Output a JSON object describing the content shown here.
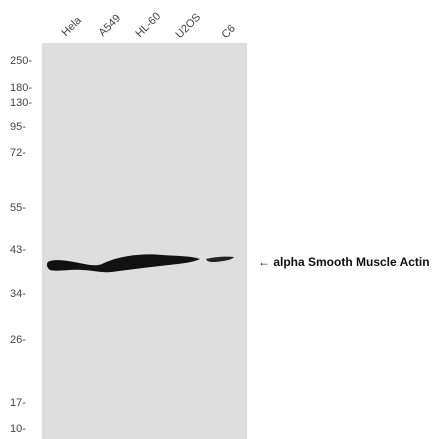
{
  "lanes": [
    "Hela",
    "A549",
    "HL-60",
    "U2OS",
    "C6"
  ],
  "mw_markers": [
    "250-",
    "180-",
    "130-",
    "95-",
    "72-",
    "55-",
    "43-",
    "34-",
    "26-",
    "17-",
    "10-"
  ],
  "band_label": "← alpha Smooth Muscle Actin",
  "colors": {
    "membrane": "#dedede",
    "band": "#111111"
  }
}
